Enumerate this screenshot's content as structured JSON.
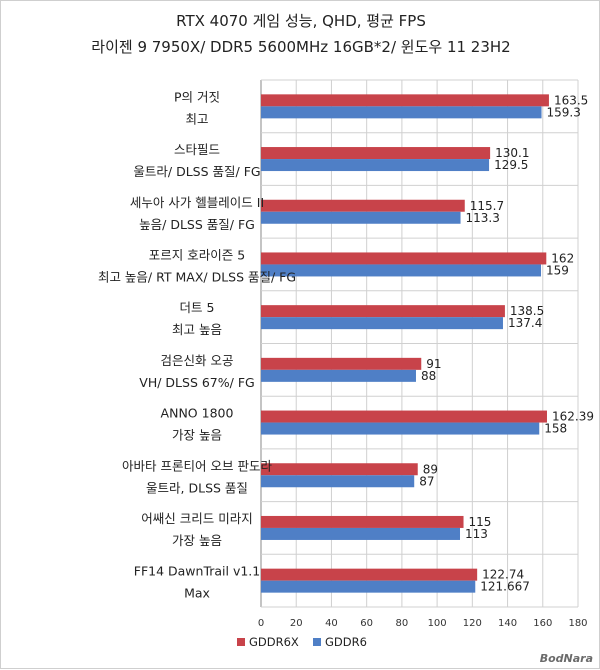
{
  "chart_data": {
    "type": "bar",
    "orientation": "horizontal",
    "title": "RTX 4070 게임 성능, QHD, 평균 FPS",
    "subtitle": "라이젠 9 7950X/ DDR5 5600MHz 16GB*2/ 윈도우 11 23H2",
    "categories": [
      [
        "P의 거짓",
        "최고"
      ],
      [
        "스타필드",
        "울트라/ DLSS 품질/ FG"
      ],
      [
        "세누아 사가 헬블레이드 II",
        "높음/ DLSS 품질/ FG"
      ],
      [
        "포르지 호라이즌 5",
        "최고 높음/ RT MAX/ DLSS 품질/ FG"
      ],
      [
        "더트 5",
        "최고 높음"
      ],
      [
        "검은신화 오공",
        "VH/ DLSS 67%/ FG"
      ],
      [
        "ANNO 1800",
        "가장 높음"
      ],
      [
        "아바타 프론티어 오브 판도라",
        "울트라, DLSS 품질"
      ],
      [
        "어쌔신 크리드 미라지",
        "가장 높음"
      ],
      [
        "FF14 DawnTrail v1.1",
        "Max"
      ]
    ],
    "series": [
      {
        "name": "GDDR6X",
        "color": "#c8434a",
        "values": [
          163.5,
          130.1,
          115.7,
          162,
          138.5,
          91,
          162.39,
          89,
          115,
          122.74
        ],
        "labels": [
          "163.5",
          "130.1",
          "115.7",
          "162",
          "138.5",
          "91",
          "162.39",
          "89",
          "115",
          "122.74"
        ]
      },
      {
        "name": "GDDR6",
        "color": "#4f7fc6",
        "values": [
          159.3,
          129.5,
          113.3,
          159,
          137.4,
          88,
          158,
          87,
          113,
          121.667
        ],
        "labels": [
          "159.3",
          "129.5",
          "113.3",
          "159",
          "137.4",
          "88",
          "158",
          "87",
          "113",
          "121.667"
        ]
      }
    ],
    "xlim": [
      0,
      180
    ],
    "ticks": [
      "0",
      "20",
      "40",
      "60",
      "80",
      "100",
      "120",
      "140",
      "160",
      "180"
    ],
    "grid": true,
    "legend": "bottom-center"
  },
  "watermark": "BodNara",
  "colors": {
    "grid": "#d0d0d0",
    "axis": "#888888",
    "text": "#222222"
  }
}
